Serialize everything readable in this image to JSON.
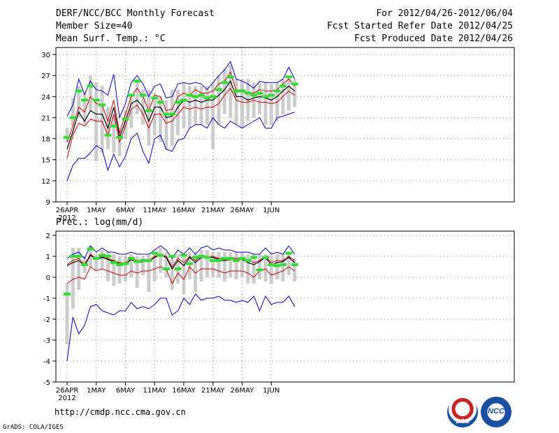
{
  "header": {
    "title": "DERF/NCC/BCC Monthly Forecast",
    "member_size": "Member Size=40",
    "variable": "Mean Surf. Temp.: °C",
    "forecast_period": "For 2012/04/26-2012/06/04",
    "fcst_started": "Fcst Started Refer Date 2012/04/25",
    "fcst_produced": "Fcst Produced Date 2012/04/26"
  },
  "footer": {
    "url": "http://cmdp.ncc.cma.gov.cn",
    "grads": "GrADS: COLA/IGES",
    "logo_bcc": "BCC",
    "logo_ncc": "NCC"
  },
  "colors": {
    "max": "#0000cc",
    "band": "#cc0000",
    "mean": "#000000",
    "box": "#cccccc",
    "obs": "#33dd33",
    "grid": "#888888"
  },
  "chart_data": [
    {
      "type": "line",
      "title": "",
      "ylabel": "Mean Surf. Temp.: °C",
      "xlabel": "",
      "ylim": [
        9,
        31
      ],
      "yticks": [
        9,
        12,
        15,
        18,
        21,
        24,
        27,
        30
      ],
      "x_ticks": [
        {
          "day": 0,
          "label": "26APR"
        },
        {
          "day": 5,
          "label": "1MAY"
        },
        {
          "day": 10,
          "label": "6MAY"
        },
        {
          "day": 15,
          "label": "11MAY"
        },
        {
          "day": 20,
          "label": "16MAY"
        },
        {
          "day": 25,
          "label": "21MAY"
        },
        {
          "day": 30,
          "label": "26MAY"
        },
        {
          "day": 35,
          "label": "1JUN"
        }
      ],
      "year_label": "2012",
      "grid": true,
      "series": [
        {
          "name": "max",
          "values": [
            21.2,
            22.8,
            26.5,
            24.3,
            26.2,
            25.0,
            24.8,
            24.2,
            27.2,
            21.0,
            23.0,
            26.0,
            27.0,
            25.8,
            24.0,
            25.5,
            25.8,
            23.8,
            24.0,
            25.8,
            26.0,
            25.8,
            26.0,
            25.8,
            25.0,
            26.0,
            27.0,
            27.8,
            29.0,
            26.5,
            26.2,
            25.8,
            25.2,
            26.2,
            26.0,
            26.0,
            26.0,
            26.5,
            28.2,
            26.5
          ]
        },
        {
          "name": "upper",
          "values": [
            17.5,
            19.8,
            22.5,
            21.8,
            24.0,
            23.0,
            22.8,
            20.5,
            23.5,
            18.8,
            21.5,
            24.0,
            25.2,
            24.0,
            22.0,
            24.2,
            24.0,
            22.0,
            22.2,
            24.0,
            24.5,
            24.2,
            25.0,
            24.5,
            24.5,
            24.8,
            25.8,
            26.2,
            27.5,
            24.8,
            25.0,
            24.5,
            24.5,
            25.0,
            24.8,
            24.8,
            25.0,
            25.8,
            26.5,
            25.5
          ]
        },
        {
          "name": "mean",
          "values": [
            16.5,
            19.0,
            21.8,
            20.5,
            22.0,
            21.5,
            21.5,
            19.5,
            22.5,
            18.2,
            20.5,
            23.0,
            23.5,
            22.5,
            20.5,
            22.5,
            22.5,
            21.0,
            21.2,
            22.5,
            23.5,
            23.2,
            23.5,
            23.2,
            23.5,
            23.5,
            24.2,
            25.0,
            26.2,
            24.0,
            24.0,
            23.5,
            23.8,
            24.0,
            23.8,
            23.5,
            24.0,
            24.8,
            25.5,
            24.8
          ]
        },
        {
          "name": "lower",
          "values": [
            15.2,
            18.5,
            20.2,
            19.8,
            20.8,
            20.5,
            20.5,
            18.5,
            21.5,
            17.5,
            19.8,
            22.2,
            22.8,
            21.5,
            19.5,
            21.5,
            21.5,
            20.2,
            20.5,
            21.5,
            22.5,
            22.2,
            22.5,
            22.2,
            22.5,
            22.5,
            23.0,
            24.2,
            25.2,
            23.5,
            23.2,
            23.2,
            23.5,
            23.2,
            23.2,
            23.0,
            23.2,
            24.0,
            24.8,
            24.2
          ]
        },
        {
          "name": "min",
          "values": [
            12.0,
            14.2,
            15.2,
            15.2,
            16.0,
            17.0,
            16.5,
            13.5,
            15.8,
            14.0,
            15.5,
            18.0,
            18.8,
            16.2,
            14.5,
            18.0,
            18.5,
            16.5,
            16.2,
            17.8,
            18.0,
            19.5,
            20.0,
            20.0,
            19.5,
            21.0,
            20.0,
            19.5,
            20.5,
            20.0,
            19.5,
            20.0,
            20.5,
            21.0,
            19.5,
            19.5,
            21.0,
            21.2,
            21.5,
            21.8
          ]
        }
      ],
      "boxes": [
        [
          17.5,
          19.5
        ],
        [
          19.8,
          23.8
        ],
        [
          21.0,
          25.5
        ],
        [
          20.0,
          24.5
        ],
        [
          22.0,
          27.0
        ],
        [
          14.8,
          26.0
        ],
        [
          16.0,
          25.5
        ],
        [
          16.5,
          22.5
        ],
        [
          16.0,
          21.0
        ],
        [
          15.5,
          19.5
        ],
        [
          18.0,
          22.0
        ],
        [
          19.5,
          24.0
        ],
        [
          21.5,
          26.5
        ],
        [
          20.0,
          25.0
        ],
        [
          17.0,
          25.0
        ],
        [
          18.5,
          24.5
        ],
        [
          17.5,
          24.0
        ],
        [
          16.5,
          23.5
        ],
        [
          17.0,
          25.0
        ],
        [
          18.5,
          25.0
        ],
        [
          19.5,
          26.0
        ],
        [
          19.5,
          25.5
        ],
        [
          20.0,
          25.5
        ],
        [
          20.0,
          25.5
        ],
        [
          20.0,
          25.5
        ],
        [
          16.5,
          26.0
        ],
        [
          20.0,
          27.0
        ],
        [
          21.5,
          28.0
        ],
        [
          21.0,
          28.5
        ],
        [
          20.0,
          26.5
        ],
        [
          19.5,
          26.5
        ],
        [
          20.5,
          26.5
        ],
        [
          21.0,
          26.0
        ],
        [
          21.5,
          26.0
        ],
        [
          20.0,
          26.0
        ],
        [
          20.0,
          25.8
        ],
        [
          20.5,
          26.0
        ],
        [
          21.5,
          26.5
        ],
        [
          22.0,
          27.0
        ],
        [
          22.5,
          26.5
        ]
      ],
      "observed": [
        18.2,
        21.0,
        24.8,
        23.5,
        25.5,
        23.5,
        22.8,
        18.5,
        19.8,
        18.2,
        20.8,
        24.2,
        26.2,
        24.2,
        22.0,
        23.8,
        23.2,
        21.5,
        21.5,
        23.2,
        23.5,
        24.2,
        24.0,
        24.2,
        23.8,
        24.0,
        25.0,
        26.0,
        26.8,
        24.8,
        24.8,
        24.5,
        24.2,
        24.5,
        24.0,
        24.2,
        24.8,
        25.5,
        26.8,
        25.8
      ]
    },
    {
      "type": "line",
      "title": "",
      "ylabel": "Prec.: log(mm/d)",
      "xlabel": "",
      "ylim": [
        -5,
        2.2
      ],
      "yticks": [
        -5,
        -4,
        -3,
        -2,
        -1,
        0,
        1,
        2
      ],
      "x_ticks": [
        {
          "day": 0,
          "label": "26APR"
        },
        {
          "day": 5,
          "label": "1MAY"
        },
        {
          "day": 10,
          "label": "6MAY"
        },
        {
          "day": 15,
          "label": "11MAY"
        },
        {
          "day": 20,
          "label": "16MAY"
        },
        {
          "day": 25,
          "label": "21MAY"
        },
        {
          "day": 30,
          "label": "26MAY"
        },
        {
          "day": 35,
          "label": "1JUN"
        }
      ],
      "year_label": "2012",
      "grid": true,
      "series": [
        {
          "name": "max",
          "values": [
            0.9,
            1.1,
            1.2,
            0.9,
            1.5,
            1.2,
            1.4,
            1.2,
            1.2,
            1.1,
            1.1,
            1.2,
            1.1,
            1.1,
            1.1,
            1.3,
            1.5,
            1.3,
            0.9,
            1.3,
            1.1,
            1.4,
            1.1,
            1.4,
            1.5,
            1.3,
            1.4,
            1.3,
            1.3,
            1.2,
            1.2,
            1.2,
            1.1,
            1.1,
            1.4,
            1.1,
            1.2,
            1.1,
            1.5,
            1.1
          ]
        },
        {
          "name": "upper",
          "values": [
            0.6,
            0.8,
            0.9,
            0.6,
            1.1,
            0.9,
            1.0,
            0.9,
            0.8,
            0.7,
            0.7,
            0.9,
            0.8,
            0.8,
            0.8,
            1.0,
            1.1,
            1.0,
            0.5,
            0.9,
            0.7,
            1.0,
            0.8,
            1.0,
            1.0,
            1.0,
            0.9,
            0.9,
            0.9,
            0.9,
            0.9,
            0.8,
            0.7,
            0.8,
            1.0,
            0.7,
            0.8,
            0.8,
            1.0,
            0.8
          ]
        },
        {
          "name": "mean",
          "values": [
            0.55,
            0.7,
            0.8,
            0.55,
            1.05,
            0.85,
            0.95,
            0.85,
            0.75,
            0.65,
            0.6,
            0.85,
            0.7,
            0.75,
            0.75,
            0.95,
            1.05,
            0.95,
            0.4,
            0.8,
            0.55,
            0.95,
            0.7,
            0.95,
            0.95,
            0.95,
            0.85,
            0.8,
            0.85,
            0.85,
            0.85,
            0.7,
            0.6,
            0.75,
            0.95,
            0.6,
            0.7,
            0.75,
            0.95,
            0.7
          ]
        },
        {
          "name": "lower",
          "values": [
            -0.3,
            -0.1,
            0.0,
            -0.1,
            0.5,
            0.3,
            0.4,
            0.3,
            0.2,
            0.1,
            0.1,
            0.3,
            0.2,
            0.3,
            0.3,
            0.4,
            0.5,
            0.4,
            -0.3,
            0.2,
            -0.1,
            0.5,
            0.2,
            0.4,
            0.4,
            0.4,
            0.3,
            0.2,
            0.3,
            0.3,
            0.3,
            0.2,
            0.0,
            0.3,
            0.4,
            0.1,
            0.2,
            0.3,
            0.5,
            0.3
          ]
        },
        {
          "name": "min",
          "values": [
            -4.0,
            -1.9,
            -2.7,
            -2.3,
            -1.4,
            -1.3,
            -1.6,
            -1.7,
            -1.8,
            -1.6,
            -1.6,
            -1.2,
            -1.5,
            -1.4,
            -1.5,
            -1.3,
            -1.0,
            -1.0,
            -1.8,
            -1.6,
            -1.0,
            -1.3,
            -0.8,
            -1.1,
            -1.0,
            -1.0,
            -0.9,
            -1.1,
            -1.1,
            -1.2,
            -1.1,
            -1.2,
            -0.9,
            -1.6,
            -0.9,
            -1.3,
            -1.2,
            -1.2,
            -0.9,
            -1.4
          ]
        }
      ],
      "boxes": [
        [
          -3.2,
          -0.3
        ],
        [
          -1.5,
          1.4
        ],
        [
          -0.6,
          1.4
        ],
        [
          0.2,
          1.0
        ],
        [
          0.5,
          1.5
        ],
        [
          0.3,
          1.1
        ],
        [
          0.4,
          1.3
        ],
        [
          -0.2,
          1.2
        ],
        [
          -0.4,
          1.1
        ],
        [
          -0.3,
          1.0
        ],
        [
          -0.2,
          1.0
        ],
        [
          0.0,
          1.1
        ],
        [
          -0.5,
          1.0
        ],
        [
          0.1,
          1.0
        ],
        [
          -0.7,
          1.1
        ],
        [
          -0.2,
          1.2
        ],
        [
          0.2,
          1.4
        ],
        [
          0.0,
          1.2
        ],
        [
          -0.6,
          0.9
        ],
        [
          -0.3,
          1.1
        ],
        [
          -0.8,
          1.1
        ],
        [
          -0.1,
          1.2
        ],
        [
          -0.7,
          1.1
        ],
        [
          -0.2,
          1.3
        ],
        [
          0.0,
          1.3
        ],
        [
          0.0,
          1.2
        ],
        [
          0.0,
          1.2
        ],
        [
          -0.2,
          1.2
        ],
        [
          0.0,
          1.2
        ],
        [
          -0.1,
          1.2
        ],
        [
          0.0,
          1.2
        ],
        [
          -0.3,
          1.1
        ],
        [
          -0.3,
          1.1
        ],
        [
          -0.1,
          1.1
        ],
        [
          -0.2,
          1.1
        ],
        [
          -0.3,
          1.0
        ],
        [
          -0.1,
          1.1
        ],
        [
          -0.2,
          1.1
        ],
        [
          0.1,
          1.2
        ],
        [
          -0.2,
          0.9
        ]
      ],
      "observed": [
        -0.8,
        1.0,
        1.0,
        0.6,
        1.35,
        0.9,
        1.05,
        1.0,
        0.7,
        0.6,
        0.65,
        0.9,
        0.75,
        0.8,
        0.8,
        1.15,
        1.05,
        0.4,
        1.0,
        0.4,
        1.05,
        0.65,
        0.95,
        1.0,
        0.95,
        0.8,
        0.8,
        0.9,
        0.9,
        0.8,
        0.9,
        0.8,
        0.95,
        0.35,
        0.95,
        0.6,
        0.55,
        0.6,
        1.15,
        0.6
      ]
    }
  ]
}
